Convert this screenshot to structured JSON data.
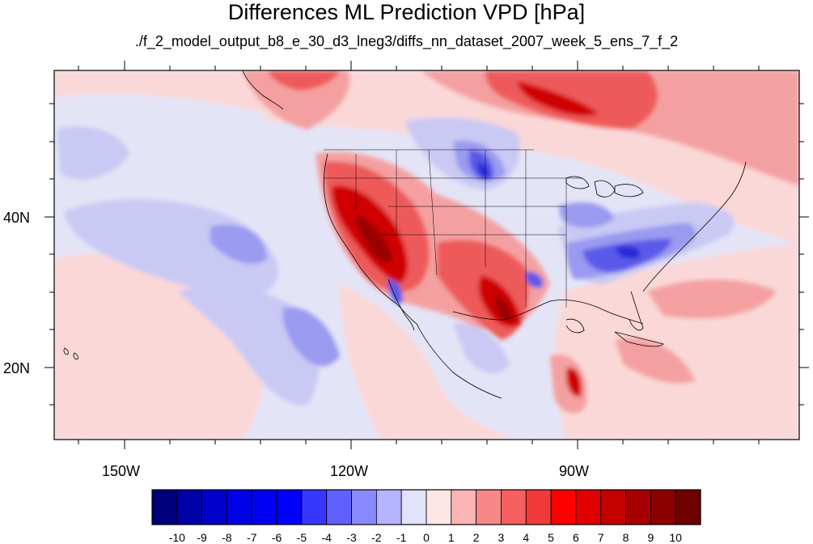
{
  "title": "Differences ML Prediction VPD [hPa]",
  "subtitle": "./f_2_model_output_b8_e_30_d3_lneg3/diffs_nn_dataset_2007_week_5_ens_7_f_2",
  "axes": {
    "x_ticks": [
      "150W",
      "120W",
      "90W"
    ],
    "y_ticks": [
      "40N",
      "20N"
    ]
  },
  "colorbar": {
    "labels": [
      "-10",
      "-9",
      "-8",
      "-7",
      "-6",
      "-5",
      "-4",
      "-3",
      "-2",
      "-1",
      "0",
      "1",
      "2",
      "3",
      "4",
      "5",
      "6",
      "7",
      "8",
      "9",
      "10"
    ],
    "colors": [
      "#00007c",
      "#0000a8",
      "#0000cc",
      "#0000e6",
      "#0000f5",
      "#0000ff",
      "#3737ff",
      "#6060ff",
      "#8989ff",
      "#b4b4ff",
      "#e2e2fb",
      "#fde5e5",
      "#fbb4b4",
      "#f88888",
      "#f55f5f",
      "#f23a3a",
      "#ff0000",
      "#e00000",
      "#c40000",
      "#a80000",
      "#8c0000",
      "#6e0000"
    ]
  },
  "map_colors": {
    "background": "#e4e4f7",
    "light_red": "#fbd8d8",
    "med_red": "#f4a0a0",
    "red": "#ee5a5a",
    "dark_red": "#d00000",
    "very_dark_red": "#9a0000",
    "light_blue": "#c9c9f4",
    "blue": "#9a9af0",
    "dark_blue": "#5a5ae8",
    "deep_blue": "#2a2ad8",
    "coast": "#000000"
  }
}
